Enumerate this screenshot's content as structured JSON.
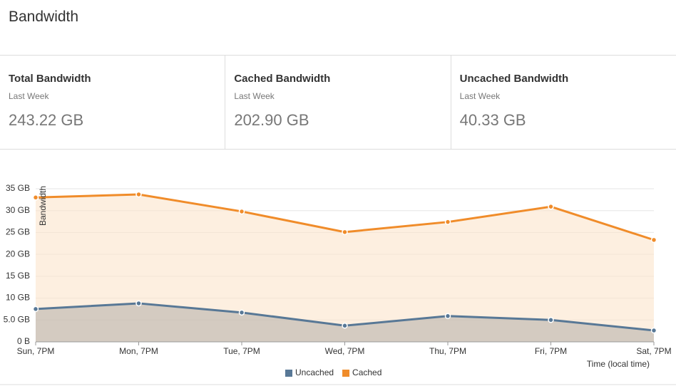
{
  "header": {
    "title": "Bandwidth"
  },
  "stats": [
    {
      "label": "Total Bandwidth",
      "period": "Last Week",
      "value": "243.22 GB"
    },
    {
      "label": "Cached Bandwidth",
      "period": "Last Week",
      "value": "202.90 GB"
    },
    {
      "label": "Uncached Bandwidth",
      "period": "Last Week",
      "value": "40.33 GB"
    }
  ],
  "chart_data": {
    "type": "area",
    "y_label": "Bandwidth",
    "x_label": "Time (local time)",
    "categories": [
      "Sun, 7PM",
      "Mon, 7PM",
      "Tue, 7PM",
      "Wed, 7PM",
      "Thu, 7PM",
      "Fri, 7PM",
      "Sat, 7PM"
    ],
    "series": [
      {
        "name": "Uncached",
        "color": "#587896",
        "fill": "#b9b2ab",
        "values": [
          7.5,
          8.8,
          6.7,
          3.7,
          5.9,
          5.0,
          2.6
        ]
      },
      {
        "name": "Cached",
        "color": "#f08c2a",
        "fill": "#fbe4cb",
        "values": [
          33.0,
          33.7,
          29.8,
          25.1,
          27.4,
          30.9,
          23.3
        ]
      }
    ],
    "ylim": [
      0,
      35
    ],
    "yticks": [
      {
        "value": 0,
        "label": "0 B"
      },
      {
        "value": 5,
        "label": "5.0 GB"
      },
      {
        "value": 10,
        "label": "10 GB"
      },
      {
        "value": 15,
        "label": "15 GB"
      },
      {
        "value": 20,
        "label": "20 GB"
      },
      {
        "value": 25,
        "label": "25 GB"
      },
      {
        "value": 30,
        "label": "30 GB"
      },
      {
        "value": 35,
        "label": "35 GB"
      }
    ],
    "grid": true,
    "legend": "bottom"
  }
}
